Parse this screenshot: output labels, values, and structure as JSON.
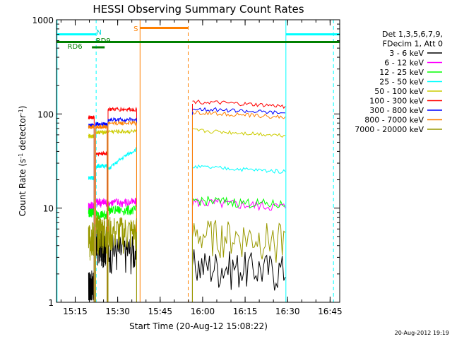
{
  "chart_data": {
    "type": "line",
    "title": "HESSI Observing Summary Count Rates",
    "xlabel": "Start Time (20-Aug-12 15:08:22)",
    "ylabel": "Count Rate (s⁻¹ detector⁻¹)",
    "x_unit": "minutes since 15:08:22",
    "xlim": [
      0,
      100
    ],
    "ylim": [
      1,
      1000
    ],
    "y_scale": "log",
    "grid": false,
    "legend_position": "right",
    "x_ticks": [
      {
        "value": 6.6,
        "label": "15:15"
      },
      {
        "value": 21.6,
        "label": "15:30"
      },
      {
        "value": 36.6,
        "label": "15:45"
      },
      {
        "value": 51.6,
        "label": "16:00"
      },
      {
        "value": 66.6,
        "label": "16:15"
      },
      {
        "value": 81.6,
        "label": "16:30"
      },
      {
        "value": 96.6,
        "label": "16:45"
      }
    ],
    "y_ticks": [
      {
        "value": 1,
        "label": "1"
      },
      {
        "value": 10,
        "label": "10"
      },
      {
        "value": 100,
        "label": "100"
      },
      {
        "value": 1000,
        "label": "1000"
      }
    ],
    "legend_header": [
      "Det 1,3,5,6,7,9,",
      "FDecim 1, Att 0"
    ],
    "segments": [
      [
        11.3,
        13.3
      ],
      [
        13.8,
        17.9
      ],
      [
        18.2,
        28.3
      ],
      [
        48.0,
        80.8
      ]
    ],
    "series": [
      {
        "name": "3 - 6 keV",
        "color": "#000000",
        "values": [
          1.5,
          4.2,
          3.6,
          2.4
        ]
      },
      {
        "name": "6 - 12 keV",
        "color": "#ff00ff",
        "values": [
          10.5,
          11.5,
          11.5,
          11.0
        ]
      },
      {
        "name": "12 - 25 keV",
        "color": "#00ff00",
        "values": [
          9,
          8.5,
          9.5,
          11.5
        ]
      },
      {
        "name": "25 - 50 keV",
        "color": "#00ffff",
        "values": [
          21,
          28,
          34,
          26
        ]
      },
      {
        "name": "50 - 100 keV",
        "color": "#cccc00",
        "values": [
          58,
          64,
          65,
          63
        ]
      },
      {
        "name": "100 - 300 keV",
        "color": "#ff0000",
        "values": [
          92,
          38,
          112,
          128
        ]
      },
      {
        "name": "300 - 800 keV",
        "color": "#0000ff",
        "values": [
          75,
          78,
          87,
          108
        ]
      },
      {
        "name": "800 - 7000 keV",
        "color": "#ff8000",
        "values": [
          73,
          73,
          80,
          98
        ]
      },
      {
        "name": "7000 - 20000 keV",
        "color": "#999900",
        "values": [
          5,
          5.8,
          5.6,
          5.0
        ]
      }
    ],
    "annotations": [
      {
        "label": "N",
        "color": "#00d8d8"
      },
      {
        "label": "S",
        "color": "#ff8000"
      },
      {
        "label": "RD6",
        "color": "#008000"
      },
      {
        "label": "RD9",
        "color": "#008000"
      }
    ],
    "flag_bars": [
      {
        "name": "night",
        "color": "#00ffff",
        "start": 0,
        "end": 14.0,
        "level": 700
      },
      {
        "name": "night",
        "color": "#00ffff",
        "start": 81.0,
        "end": 100,
        "level": 700
      },
      {
        "name": "saa",
        "color": "#ff8000",
        "start": 29.5,
        "end": 46.5,
        "level": 820
      },
      {
        "name": "rd6",
        "color": "#008000",
        "start": 0,
        "end": 100,
        "level": 580
      },
      {
        "name": "rd9",
        "color": "#008000",
        "start": 12.5,
        "end": 17.0,
        "level": 510
      }
    ],
    "event_lines": [
      {
        "name": "night-edge",
        "color": "#00ffff",
        "style": "solid",
        "x": 0.2
      },
      {
        "name": "night-edge",
        "color": "#00ffff",
        "style": "dashed",
        "x": 14.0
      },
      {
        "name": "night-edge",
        "color": "#00ffff",
        "style": "solid",
        "x": 81.0
      },
      {
        "name": "night-edge",
        "color": "#00ffff",
        "style": "dashed",
        "x": 97.8
      },
      {
        "name": "saa-edge",
        "color": "#ff8000",
        "style": "solid",
        "x": 29.5
      },
      {
        "name": "saa-edge",
        "color": "#ff8000",
        "style": "dashed",
        "x": 46.5
      }
    ]
  },
  "footer": {
    "timestamp": "20-Aug-2012 19:19"
  }
}
